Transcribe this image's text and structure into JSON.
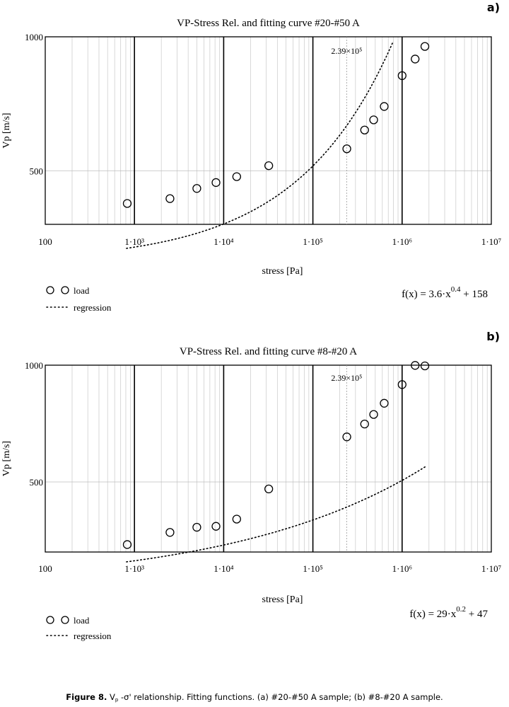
{
  "figure_caption": {
    "label": "Figure 8.",
    "text_prefix": "V",
    "text_sub": "p",
    "text_rest": " -σ' relationship. Fitting functions. (a) #20-#50 A sample; (b) #8-#20 A sample."
  },
  "chart_data": [
    {
      "panel_label": "a)",
      "type": "scatter",
      "title": "VP-Stress Rel. and fitting curve #20-#50 A",
      "xlabel": "stress [Pa]",
      "ylabel": "Vp [m/s]",
      "x_scale": "log",
      "xlim": [
        100,
        10000000
      ],
      "ylim": [
        300,
        1000
      ],
      "x_tick_labels": [
        "100",
        "1·10³",
        "1·10⁴",
        "1·10⁵",
        "1·10⁶",
        "1·10⁷"
      ],
      "y_tick_labels": [
        "500",
        "1000"
      ],
      "y_ticks": [
        500,
        1000
      ],
      "x_marker": {
        "value": 239000,
        "label": "2.39×10⁵"
      },
      "grid": true,
      "legend": {
        "placement": "bottom-left",
        "entries": [
          {
            "name": "load",
            "style": "circle-markers"
          },
          {
            "name": "regression",
            "style": "dotted-line"
          }
        ]
      },
      "formula": {
        "text": "f(x) = 3.6·x^0.4 + 158",
        "prefix": "f(x) = 3.6·x",
        "exponent": "0.4",
        "suffix": " + 158",
        "a": 3.6,
        "b": 0.4,
        "c": 158
      },
      "series": [
        {
          "name": "load",
          "points": [
            [
              830,
              378
            ],
            [
              2500,
              396
            ],
            [
              5000,
              434
            ],
            [
              8200,
              456
            ],
            [
              14000,
              478
            ],
            [
              32000,
              519
            ],
            [
              240000,
              582
            ],
            [
              380000,
              652
            ],
            [
              480000,
              690
            ],
            [
              630000,
              740
            ],
            [
              1000000,
              855
            ],
            [
              1400000,
              917
            ],
            [
              1800000,
              964
            ]
          ]
        }
      ]
    },
    {
      "panel_label": "b)",
      "type": "scatter",
      "title": "VP-Stress Rel. and fitting curve #8-#20 A",
      "xlabel": "stress [Pa]",
      "ylabel": "Vp [m/s]",
      "x_scale": "log",
      "xlim": [
        100,
        10000000
      ],
      "ylim": [
        200,
        1000
      ],
      "x_tick_labels": [
        "100",
        "1·10³",
        "1·10⁴",
        "1·10⁵",
        "1·10⁶",
        "1·10⁷"
      ],
      "y_tick_labels": [
        "500",
        "1000"
      ],
      "y_ticks": [
        500,
        1000
      ],
      "x_marker": {
        "value": 239000,
        "label": "2.39×10⁵"
      },
      "grid": true,
      "legend": {
        "placement": "bottom-left",
        "entries": [
          {
            "name": "load",
            "style": "circle-markers"
          },
          {
            "name": "regression",
            "style": "dotted-line"
          }
        ]
      },
      "formula": {
        "text": "f(x) = 29·x^0.2 + 47",
        "prefix": "f(x) = 29·x",
        "exponent": "0.2",
        "suffix": " + 47",
        "a": 29,
        "b": 0.2,
        "c": 47
      },
      "series": [
        {
          "name": "load",
          "points": [
            [
              830,
              232
            ],
            [
              2500,
              284
            ],
            [
              5000,
              306
            ],
            [
              8200,
              310
            ],
            [
              14000,
              341
            ],
            [
              32000,
              470
            ],
            [
              240000,
              693
            ],
            [
              380000,
              748
            ],
            [
              480000,
              789
            ],
            [
              630000,
              837
            ],
            [
              1000000,
              917
            ],
            [
              1400000,
              999
            ],
            [
              1800000,
              997
            ]
          ]
        }
      ]
    }
  ]
}
